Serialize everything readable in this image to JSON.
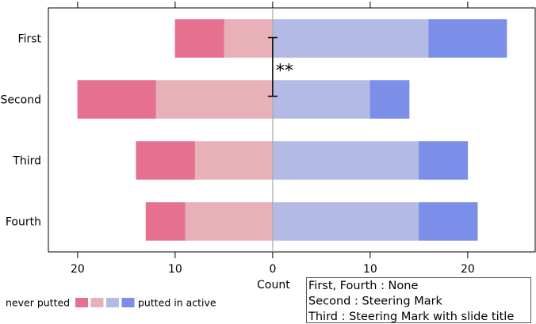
{
  "chart_data": {
    "type": "bar",
    "orientation": "horizontal",
    "layout": "diverging",
    "categories": [
      "First",
      "Second",
      "Third",
      "Fourth"
    ],
    "xlabel": "Count",
    "xlim": [
      -23,
      27
    ],
    "x_ticks": [
      -20,
      -10,
      0,
      10,
      20
    ],
    "x_tick_labels": [
      "20",
      "10",
      "0",
      "10",
      "20"
    ],
    "grid": false,
    "series_negative": [
      {
        "color": "#e8b0b8",
        "values": [
          5,
          12,
          8,
          9
        ]
      },
      {
        "color": "#e57090",
        "values": [
          5,
          8,
          6,
          4
        ]
      }
    ],
    "series_positive": [
      {
        "color": "#b4bae6",
        "values": [
          16,
          10,
          15,
          15
        ]
      },
      {
        "color": "#7b8ee8",
        "values": [
          8,
          4,
          5,
          6
        ]
      }
    ],
    "significance": {
      "label": "**",
      "between": [
        "First",
        "Second"
      ],
      "x": 0
    },
    "legend": {
      "left_text": "never putted",
      "right_text": "putted in active",
      "swatches": [
        "#e57090",
        "#e8b0b8",
        "#b4bae6",
        "#7b8ee8"
      ],
      "placement": "bottom-left"
    },
    "notes": [
      "First, Fourth : None",
      "Second : Steering Mark",
      "Third : Steering Mark with slide title"
    ]
  }
}
